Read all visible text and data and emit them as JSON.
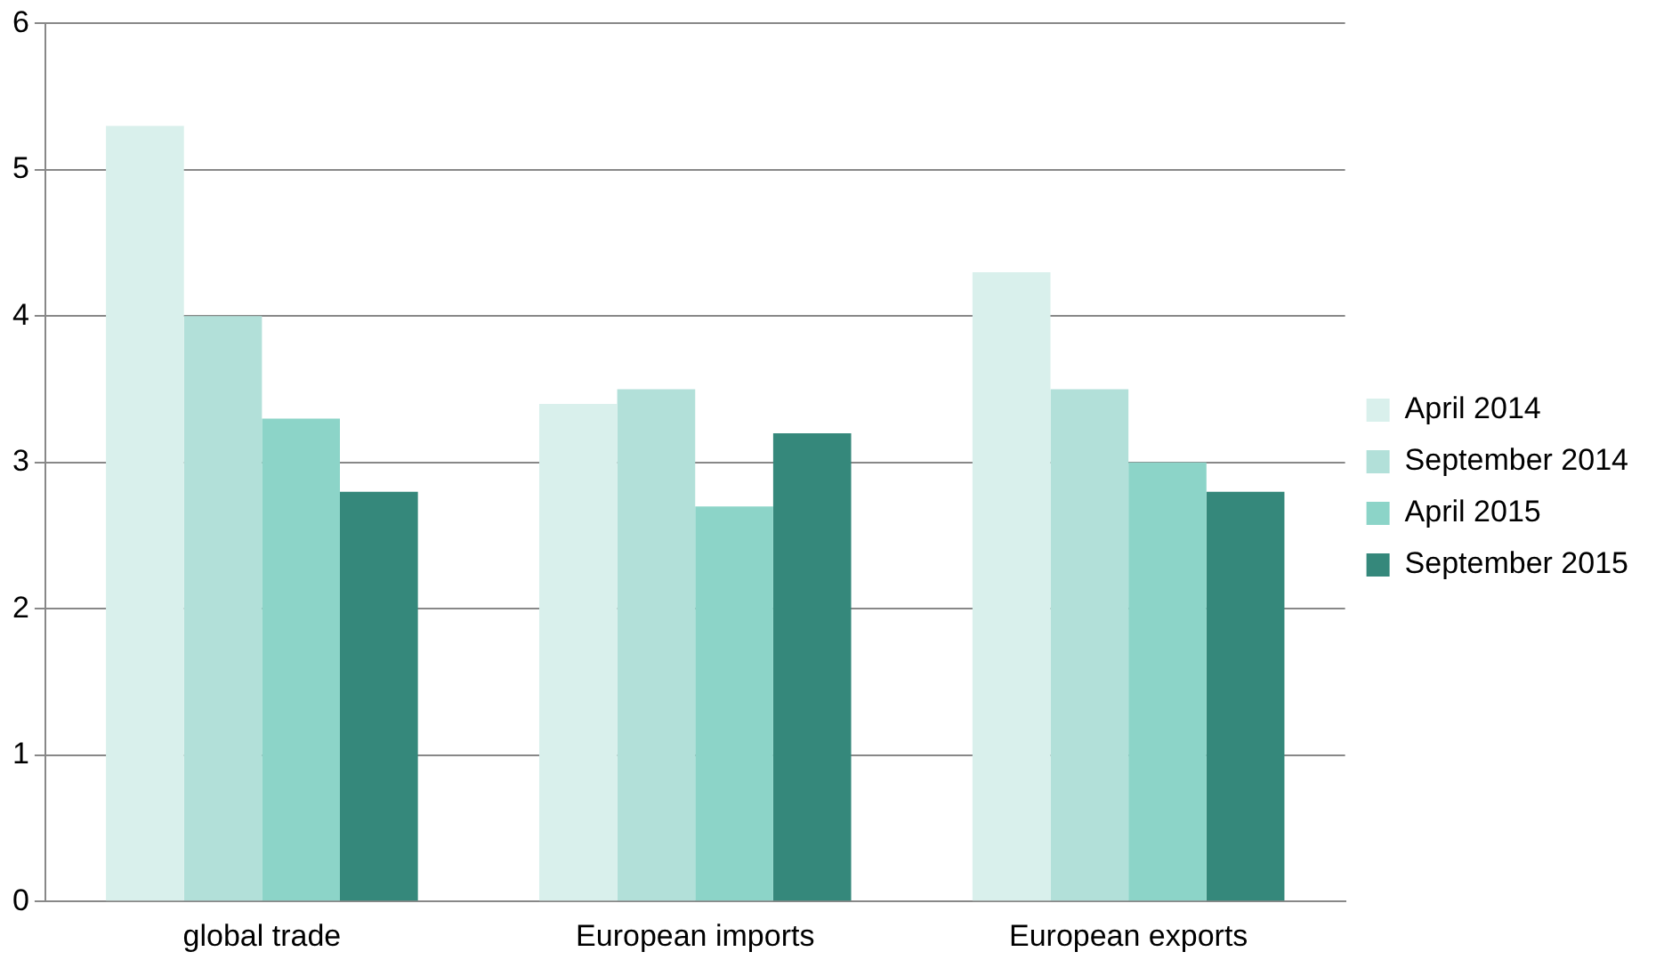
{
  "chart_data": {
    "type": "bar",
    "categories": [
      "global trade",
      "European imports",
      "European exports"
    ],
    "series": [
      {
        "name": "April 2014",
        "color": "#d9f0ec",
        "values": [
          5.3,
          3.4,
          4.3
        ]
      },
      {
        "name": "September 2014",
        "color": "#b2e0d9",
        "values": [
          4.0,
          3.5,
          3.5
        ]
      },
      {
        "name": "April 2015",
        "color": "#8cd4c8",
        "values": [
          3.3,
          2.7,
          3.0
        ]
      },
      {
        "name": "September 2015",
        "color": "#35887b",
        "values": [
          2.8,
          3.2,
          2.8
        ]
      }
    ],
    "ylim": [
      0,
      6
    ],
    "yticks": [
      0,
      1,
      2,
      3,
      4,
      5,
      6
    ],
    "grid": "y",
    "legend": "right"
  }
}
